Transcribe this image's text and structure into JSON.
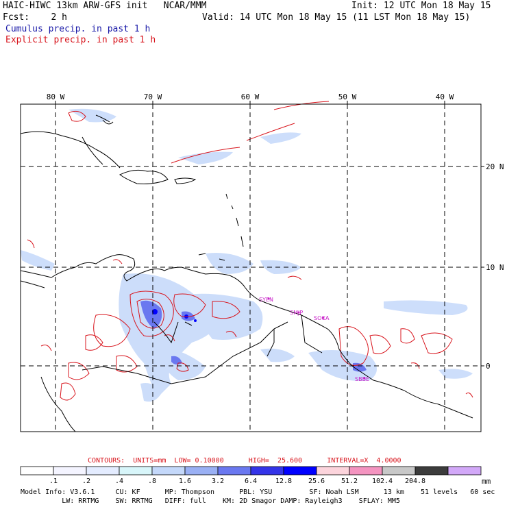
{
  "header": {
    "line1_left": "HAIC-HIWC 13km ARW-GFS init   NCAR/MMM",
    "line1_right": "Init: 12 UTC Mon 18 May 15",
    "line2_left": "Fcst:    2 h",
    "line2_right": "Valid: 14 UTC Mon 18 May 15 (11 LST Mon 18 May 15)",
    "line3": "Cumulus precip. in past 1 h",
    "line4": "Explicit precip. in past 1 h"
  },
  "map": {
    "lon_labels": [
      "80 W",
      "70 W",
      "60 W",
      "50 W",
      "40 W"
    ],
    "lat_labels": [
      "20 N",
      "10 N",
      "0"
    ],
    "stations": [
      "SYEN",
      "SMJP",
      "SOCA",
      "SBBE"
    ]
  },
  "contours": "CONTOURS:  UNITS=mm  LOW= 0.10000      HIGH=  25.600      INTERVAL=X  4.0000",
  "colorbar": {
    "labels": [
      ".1",
      ".2",
      ".4",
      ".8",
      "1.6",
      "3.2",
      "6.4",
      "12.8",
      "25.6",
      "51.2",
      "102.4",
      "204.8"
    ],
    "unit": "mm",
    "colors": [
      "#ffffff",
      "#f4f4ff",
      "#e4ecff",
      "#d8f6fa",
      "#c4d8fa",
      "#9ab0f4",
      "#6a78f0",
      "#3434e8",
      "#0000ff",
      "#fcd4dc",
      "#f494c0",
      "#c8c8c8",
      "#3c3c3c",
      "#d2a8f8"
    ]
  },
  "model_info": {
    "line1": "Model Info: V3.6.1     CU: KF      MP: Thompson      PBL: YSU         SF: Noah LSM      13 km    51 levels   60 sec",
    "line2": "          LW: RRTMG    SW: RRTMG   DIFF: full    KM: 2D Smagor DAMP: Rayleigh3    SFLAY: MM5"
  }
}
